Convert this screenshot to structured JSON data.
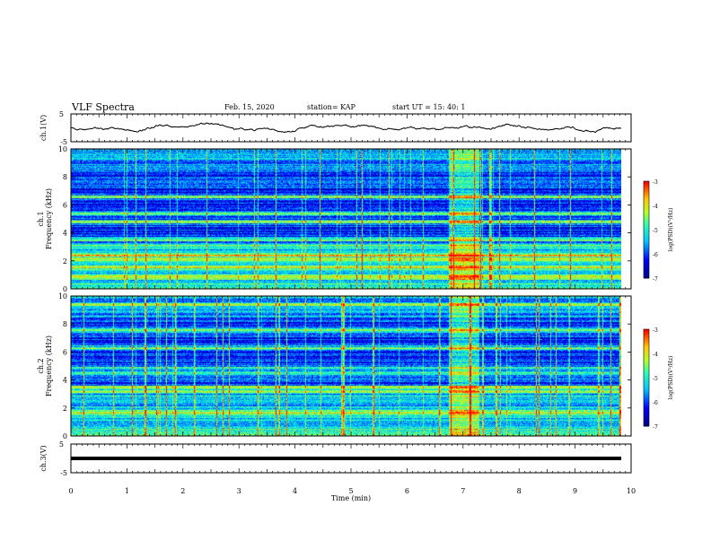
{
  "header": {
    "title": "VLF Spectra",
    "date": "Feb. 15, 2020",
    "station": "station= KAP",
    "start": "start  UT =   15: 40: 1"
  },
  "colors": {
    "spectrogram_low": "#00008c",
    "spectrogram_mid": "#00c8ff",
    "spectrogram_high": "#ff0000",
    "trace": "#000000"
  },
  "chart_data": [
    {
      "type": "line",
      "name": "ch1_waveform",
      "ylabel": "ch.1(V)",
      "ylim": [
        -5,
        5
      ],
      "yticks": [
        "5",
        "-5"
      ],
      "xlim": [
        0,
        10
      ]
    },
    {
      "type": "heatmap",
      "name": "ch1_spectrogram",
      "ylabel_line1": "ch.1",
      "ylabel_line2": "Frequency (kHz)",
      "ylim": [
        0,
        10
      ],
      "yticks": [
        "0",
        "2",
        "4",
        "6",
        "8",
        "10"
      ],
      "xlim": [
        0,
        9.85
      ],
      "colorbar": {
        "label": "log(PSD)(V²/Hz)",
        "range": [
          -7,
          -3
        ],
        "ticks": [
          "-3",
          "-4",
          "-5",
          "-6",
          "-7"
        ]
      },
      "bright_lines_khz": [
        0.9,
        1.6,
        2.1,
        2.4,
        3.1,
        3.55,
        4.8,
        5.4,
        6.6
      ],
      "burst_window_min": [
        6.75,
        7.3
      ]
    },
    {
      "type": "heatmap",
      "name": "ch2_spectrogram",
      "ylabel_line1": "ch.2",
      "ylabel_line2": "Frequency (kHz)",
      "ylim": [
        0,
        10
      ],
      "yticks": [
        "0",
        "2",
        "4",
        "6",
        "8",
        "10"
      ],
      "xlim": [
        0,
        9.85
      ],
      "colorbar": {
        "label": "log(PSD)(V²/Hz)",
        "range": [
          -7,
          -3
        ],
        "ticks": [
          "-3",
          "-4",
          "-5",
          "-6",
          "-7"
        ]
      },
      "bright_lines_khz": [
        1.7,
        3.2,
        3.5,
        4.5,
        4.9,
        6.3,
        7.6,
        9.4
      ],
      "burst_window_min": [
        6.75,
        7.3
      ]
    },
    {
      "type": "line",
      "name": "ch3_waveform",
      "ylabel": "ch.3(V)",
      "ylim": [
        -5,
        5
      ],
      "yticks": [
        "5",
        "-5"
      ],
      "constant_value": 0,
      "xlabel": "Time (min)",
      "xlim": [
        0,
        10
      ],
      "xticks": [
        "0",
        "1",
        "2",
        "3",
        "4",
        "5",
        "6",
        "7",
        "8",
        "9",
        "10"
      ]
    }
  ]
}
